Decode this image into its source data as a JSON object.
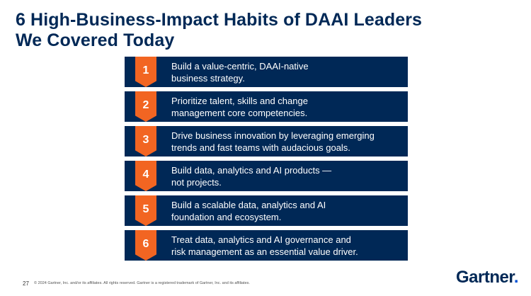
{
  "slide": {
    "title": "6 High-Business-Impact Habits of DAAI Leaders\nWe Covered Today",
    "habits": [
      {
        "number": "1",
        "text": "Build a value-centric, DAAI-native\nbusiness strategy."
      },
      {
        "number": "2",
        "text": "Prioritize talent, skills and change\nmanagement core competencies."
      },
      {
        "number": "3",
        "text": "Drive business innovation by leveraging emerging\ntrends and fast teams with audacious goals."
      },
      {
        "number": "4",
        "text": "Build data, analytics and AI products —\nnot projects."
      },
      {
        "number": "5",
        "text": "Build a scalable data, analytics and AI\nfoundation and ecosystem."
      },
      {
        "number": "6",
        "text": "Treat data, analytics and AI governance and\nrisk management as an essential value driver."
      }
    ]
  },
  "footer": {
    "page_number": "27",
    "copyright": "© 2024 Gartner, Inc. and/or its affiliates. All rights reserved. Gartner is a registered trademark of Gartner, Inc. and its affiliates.",
    "logo_text": "Gartner",
    "logo_dot": "."
  },
  "colors": {
    "title": "#002856",
    "habit_bar": "#002856",
    "badge": "#f26522",
    "logo_dot": "#0052d6"
  }
}
